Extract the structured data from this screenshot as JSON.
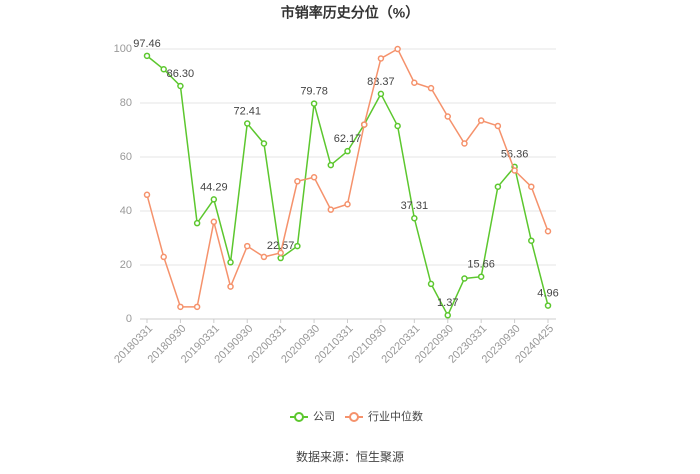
{
  "chart_data": {
    "type": "line",
    "title": "市销率历史分位（%）",
    "categories": [
      "20180331",
      null,
      "20180930",
      null,
      "20190331",
      null,
      "20190930",
      null,
      "20200331",
      null,
      "20200930",
      null,
      "20210331",
      null,
      "20210930",
      null,
      "20220331",
      null,
      "20220930",
      null,
      "20230331",
      null,
      "20230930",
      null,
      "20240425"
    ],
    "series": [
      {
        "name": "公司",
        "color": "#5cc72e",
        "values": [
          97.46,
          92.5,
          86.3,
          35.5,
          44.29,
          21,
          72.41,
          65,
          22.57,
          27,
          79.78,
          57,
          62.17,
          72,
          83.37,
          71.5,
          37.31,
          13,
          1.37,
          15,
          15.66,
          49,
          56.36,
          29,
          4.96
        ],
        "value_labels": [
          "97.46",
          null,
          "86.30",
          null,
          "44.29",
          null,
          "72.41",
          null,
          "22.57",
          null,
          "79.78",
          null,
          "62.17",
          null,
          "83.37",
          null,
          "37.31",
          null,
          "1.37",
          null,
          "15.66",
          null,
          "56.36",
          null,
          "4.96"
        ]
      },
      {
        "name": "行业中位数",
        "color": "#f5926c",
        "values": [
          46,
          23,
          4.5,
          4.5,
          36,
          12,
          27,
          23,
          24.5,
          51,
          52.5,
          40.5,
          42.5,
          72,
          96.5,
          100,
          87.5,
          85.5,
          75,
          65,
          73.5,
          71.5,
          55,
          49,
          32.5
        ]
      }
    ],
    "ylim": [
      0,
      100
    ],
    "yticks": [
      0,
      20,
      40,
      60,
      80,
      100
    ],
    "grid": true,
    "source": "数据来源：恒生聚源"
  }
}
